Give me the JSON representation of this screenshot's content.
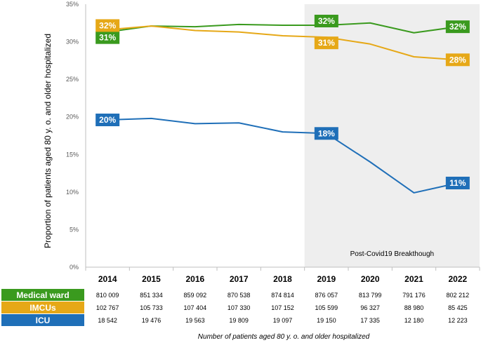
{
  "chart_data": {
    "type": "line",
    "ylabel": "Proportion of patients aged 80 y. o. and older hospitalized",
    "xlabel": "Number of patients aged 80 y. o. and older hospitalized",
    "ylim": [
      0,
      35
    ],
    "y_ticks": [
      "0%",
      "5%",
      "10%",
      "15%",
      "20%",
      "25%",
      "30%",
      "35%"
    ],
    "y_tick_values": [
      0,
      5,
      10,
      15,
      20,
      25,
      30,
      35
    ],
    "categories": [
      "2014",
      "2015",
      "2016",
      "2017",
      "2018",
      "2019",
      "2020",
      "2021",
      "2022"
    ],
    "shaded_region": {
      "from": "2019",
      "to": "2022",
      "label": "Post-Covid19 Breakthough"
    },
    "grid": false,
    "series": [
      {
        "name": "Medical ward",
        "color": "#3a9a1e",
        "values": [
          31.3,
          32.1,
          32.0,
          32.3,
          32.2,
          32.2,
          32.5,
          31.2,
          32.0
        ],
        "labels": {
          "0": "31%",
          "5": "32%",
          "8": "32%"
        },
        "table": [
          "810 009",
          "851 334",
          "859 092",
          "870 538",
          "874 814",
          "876 057",
          "813 799",
          "791 176",
          "802 212"
        ]
      },
      {
        "name": "IMCUs",
        "color": "#e6a817",
        "values": [
          31.6,
          32.1,
          31.5,
          31.3,
          30.8,
          30.6,
          29.7,
          28.0,
          27.6
        ],
        "labels": {
          "0": "32%",
          "5": "31%",
          "8": "28%"
        },
        "table": [
          "102 767",
          "105 733",
          "107 404",
          "107 330",
          "107 152",
          "105 599",
          "96 327",
          "88 980",
          "85 425"
        ]
      },
      {
        "name": "ICU",
        "color": "#1f6fb8",
        "values": [
          19.6,
          19.8,
          19.1,
          19.2,
          18.0,
          17.8,
          14.0,
          9.9,
          11.2
        ],
        "labels": {
          "0": "20%",
          "5": "18%",
          "8": "11%"
        },
        "table": [
          "18 542",
          "19 476",
          "19 563",
          "19 809",
          "19 097",
          "19 150",
          "17 335",
          "12 180",
          "12 223"
        ]
      }
    ]
  }
}
